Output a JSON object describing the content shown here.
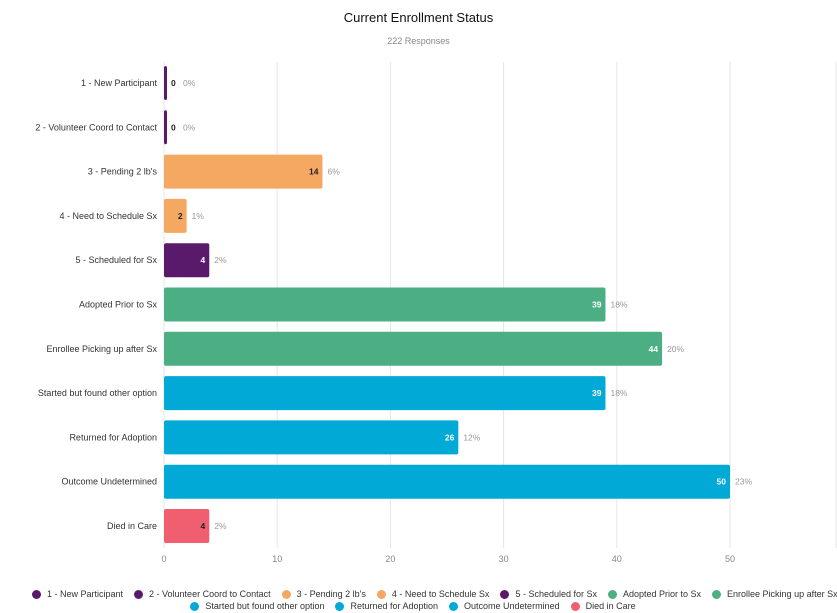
{
  "chart_data": {
    "type": "bar",
    "orientation": "horizontal",
    "title": "Current Enrollment Status",
    "subtitle": "222 Responses",
    "xlim": [
      0,
      50
    ],
    "xticks": [
      0,
      10,
      20,
      30,
      40,
      50
    ],
    "grid": true,
    "legend_position": "bottom",
    "categories": [
      "1 - New Participant",
      "2 - Volunteer Coord to Contact",
      "3 - Pending 2 lb's",
      "4 - Need to Schedule Sx",
      "5 - Scheduled for Sx",
      "Adopted Prior to Sx",
      "Enrollee Picking up after Sx",
      "Started but found other option",
      "Returned for Adoption",
      "Outcome Undetermined",
      "Died in Care"
    ],
    "values": [
      0,
      0,
      14,
      2,
      4,
      39,
      44,
      39,
      26,
      50,
      4
    ],
    "percent_labels": [
      "0%",
      "0%",
      "6%",
      "1%",
      "2%",
      "18%",
      "20%",
      "18%",
      "12%",
      "23%",
      "2%"
    ],
    "colors": [
      "#5a1a6b",
      "#5a1a6b",
      "#f4a862",
      "#f4a862",
      "#5a1a6b",
      "#4caf84",
      "#4caf84",
      "#00a9d6",
      "#00a9d6",
      "#00a9d6",
      "#ef5f6f"
    ],
    "value_label_colors": [
      "#222222",
      "#222222",
      "#222222",
      "#222222",
      "#ffffff",
      "#ffffff",
      "#ffffff",
      "#ffffff",
      "#ffffff",
      "#ffffff",
      "#222222"
    ],
    "legend": [
      {
        "label": "1 - New Participant",
        "color": "#5a1a6b"
      },
      {
        "label": "2 - Volunteer Coord to Contact",
        "color": "#5a1a6b"
      },
      {
        "label": "3 - Pending 2 lb's",
        "color": "#f4a862"
      },
      {
        "label": "4 - Need to Schedule Sx",
        "color": "#f4a862"
      },
      {
        "label": "5 - Scheduled for Sx",
        "color": "#5a1a6b"
      },
      {
        "label": "Adopted Prior to Sx",
        "color": "#4caf84"
      },
      {
        "label": "Enrollee Picking up after Sx",
        "color": "#4caf84"
      },
      {
        "label": "Started but found other option",
        "color": "#00a9d6"
      },
      {
        "label": "Returned for Adoption",
        "color": "#00a9d6"
      },
      {
        "label": "Outcome Undetermined",
        "color": "#00a9d6"
      },
      {
        "label": "Died in Care",
        "color": "#ef5f6f"
      }
    ]
  }
}
